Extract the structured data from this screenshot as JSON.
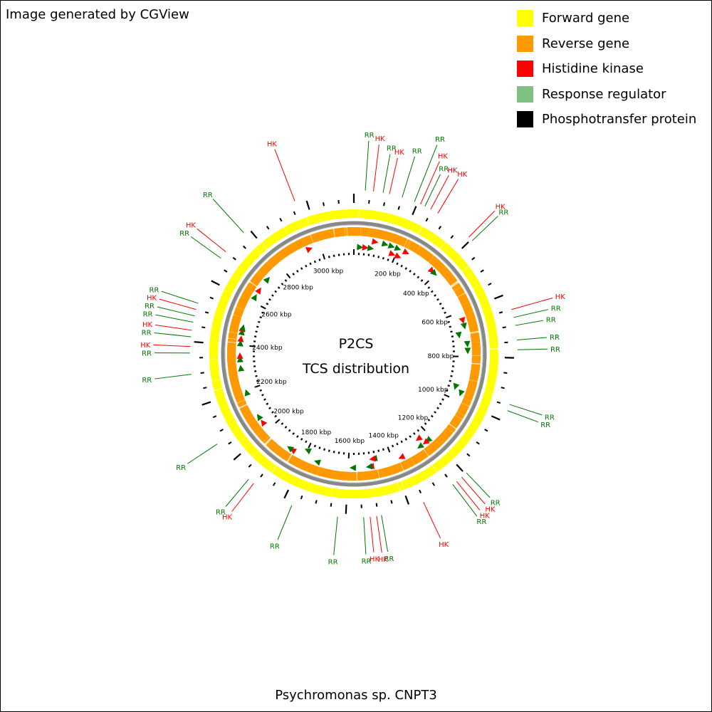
{
  "credit": "Image generated by CGView",
  "legend": [
    {
      "label": "Forward gene",
      "color": "#FFFF00"
    },
    {
      "label": "Reverse gene",
      "color": "#FF9900"
    },
    {
      "label": "Histidine kinase",
      "color": "#FF0000"
    },
    {
      "label": "Response regulator",
      "color": "#80C080"
    },
    {
      "label": "Phosphotransfer protein",
      "color": "#000000"
    }
  ],
  "center": {
    "line1": "P2CS",
    "line2": "TCS distribution"
  },
  "organism": "Psychromonas sp. CNPT3",
  "colors": {
    "forward": "#FFFF00",
    "reverse": "#FF9900",
    "hk": "#FF0000",
    "rr": "#007700",
    "backbone": "#888888",
    "ticks": "#000000"
  },
  "genome": {
    "size_kbp": 3150,
    "tick_labels": [
      {
        "kbp": 200,
        "label": "200 kbp"
      },
      {
        "kbp": 400,
        "label": "400 kbp"
      },
      {
        "kbp": 600,
        "label": "600 kbp"
      },
      {
        "kbp": 800,
        "label": "800 kbp"
      },
      {
        "kbp": 1000,
        "label": "1000 kbp"
      },
      {
        "kbp": 1200,
        "label": "1200 kbp"
      },
      {
        "kbp": 1400,
        "label": "1400 kbp"
      },
      {
        "kbp": 1600,
        "label": "1600 kbp"
      },
      {
        "kbp": 1800,
        "label": "1800 kbp"
      },
      {
        "kbp": 2000,
        "label": "2000 kbp"
      },
      {
        "kbp": 2200,
        "label": "2200 kbp"
      },
      {
        "kbp": 2400,
        "label": "2400 kbp"
      },
      {
        "kbp": 2600,
        "label": "2600 kbp"
      },
      {
        "kbp": 2800,
        "label": "2800 kbp"
      },
      {
        "kbp": 3000,
        "label": "3000 kbp"
      }
    ]
  },
  "features": [
    {
      "kbp": 2950,
      "type": "HK",
      "strand": "fwd"
    },
    {
      "kbp": 30,
      "type": "RR",
      "strand": "rev"
    },
    {
      "kbp": 55,
      "type": "HK",
      "strand": "rev"
    },
    {
      "kbp": 80,
      "type": "RR",
      "strand": "rev"
    },
    {
      "kbp": 95,
      "type": "HK",
      "strand": "fwd"
    },
    {
      "kbp": 140,
      "type": "RR",
      "strand": "fwd"
    },
    {
      "kbp": 170,
      "type": "RR",
      "strand": "fwd"
    },
    {
      "kbp": 185,
      "type": "HK",
      "strand": "rev"
    },
    {
      "kbp": 200,
      "type": "RR",
      "strand": "fwd"
    },
    {
      "kbp": 215,
      "type": "HK",
      "strand": "rev"
    },
    {
      "kbp": 240,
      "type": "HK",
      "strand": "fwd"
    },
    {
      "kbp": 380,
      "type": "HK",
      "strand": "fwd"
    },
    {
      "kbp": 395,
      "type": "RR",
      "strand": "fwd"
    },
    {
      "kbp": 640,
      "type": "HK",
      "strand": "fwd"
    },
    {
      "kbp": 665,
      "type": "RR",
      "strand": "fwd"
    },
    {
      "kbp": 700,
      "type": "RR",
      "strand": "rev"
    },
    {
      "kbp": 745,
      "type": "RR",
      "strand": "fwd"
    },
    {
      "kbp": 775,
      "type": "RR",
      "strand": "fwd"
    },
    {
      "kbp": 945,
      "type": "RR",
      "strand": "rev"
    },
    {
      "kbp": 965,
      "type": "RR",
      "strand": "fwd"
    },
    {
      "kbp": 1220,
      "type": "RR",
      "strand": "fwd"
    },
    {
      "kbp": 1235,
      "type": "HK",
      "strand": "fwd"
    },
    {
      "kbp": 1250,
      "type": "HK",
      "strand": "rev"
    },
    {
      "kbp": 1265,
      "type": "RR",
      "strand": "fwd"
    },
    {
      "kbp": 1360,
      "type": "HK",
      "strand": "fwd"
    },
    {
      "kbp": 1480,
      "type": "RR",
      "strand": "rev"
    },
    {
      "kbp": 1488,
      "type": "HK",
      "strand": "rev"
    },
    {
      "kbp": 1500,
      "type": "HK",
      "strand": "fwd"
    },
    {
      "kbp": 1508,
      "type": "RR",
      "strand": "fwd"
    },
    {
      "kbp": 1580,
      "type": "RR",
      "strand": "fwd"
    },
    {
      "kbp": 1740,
      "type": "RR",
      "strand": "fwd"
    },
    {
      "kbp": 1800,
      "type": "RR",
      "strand": "rev"
    },
    {
      "kbp": 1860,
      "type": "HK",
      "strand": "fwd"
    },
    {
      "kbp": 1875,
      "type": "RR",
      "strand": "fwd"
    },
    {
      "kbp": 2040,
      "type": "HK",
      "strand": "fwd"
    },
    {
      "kbp": 2070,
      "type": "RR",
      "strand": "fwd"
    },
    {
      "kbp": 2190,
      "type": "RR",
      "strand": "fwd"
    },
    {
      "kbp": 2300,
      "type": "RR",
      "strand": "fwd"
    },
    {
      "kbp": 2340,
      "type": "RR",
      "strand": "fwd"
    },
    {
      "kbp": 2355,
      "type": "HK",
      "strand": "fwd"
    },
    {
      "kbp": 2410,
      "type": "RR",
      "strand": "fwd"
    },
    {
      "kbp": 2430,
      "type": "HK",
      "strand": "fwd"
    },
    {
      "kbp": 2460,
      "type": "RR",
      "strand": "fwd"
    },
    {
      "kbp": 2475,
      "type": "HK",
      "strand": "fwd"
    },
    {
      "kbp": 2480,
      "type": "RR",
      "strand": "fwd"
    },
    {
      "kbp": 2625,
      "type": "RR",
      "strand": "fwd"
    },
    {
      "kbp": 2660,
      "type": "HK",
      "strand": "fwd"
    },
    {
      "kbp": 2720,
      "type": "RR",
      "strand": "fwd"
    }
  ],
  "callouts": [
    {
      "label": "HK",
      "type": "HK",
      "kbp": 2965,
      "len": 78
    },
    {
      "label": "RR",
      "type": "RR",
      "kbp": 35,
      "len": 70
    },
    {
      "label": "HK",
      "type": "HK",
      "kbp": 60,
      "len": 66
    },
    {
      "label": "RR",
      "type": "RR",
      "kbp": 90,
      "len": 55
    },
    {
      "label": "HK",
      "type": "HK",
      "kbp": 110,
      "len": 52
    },
    {
      "label": "RR",
      "type": "RR",
      "kbp": 150,
      "len": 60
    },
    {
      "label": "RR",
      "type": "RR",
      "kbp": 190,
      "len": 86
    },
    {
      "label": "HK",
      "type": "HK",
      "kbp": 210,
      "len": 66
    },
    {
      "label": "RR",
      "type": "RR",
      "kbp": 225,
      "len": 50
    },
    {
      "label": "HK",
      "type": "HK",
      "kbp": 245,
      "len": 54
    },
    {
      "label": "HK",
      "type": "HK",
      "kbp": 270,
      "len": 56
    },
    {
      "label": "HK",
      "type": "HK",
      "kbp": 390,
      "len": 52
    },
    {
      "label": "RR",
      "type": "RR",
      "kbp": 405,
      "len": 50
    },
    {
      "label": "HK",
      "type": "HK",
      "kbp": 650,
      "len": 60
    },
    {
      "label": "RR",
      "type": "RR",
      "kbp": 675,
      "len": 50
    },
    {
      "label": "RR",
      "type": "RR",
      "kbp": 700,
      "len": 40
    },
    {
      "label": "RR",
      "type": "RR",
      "kbp": 745,
      "len": 42
    },
    {
      "label": "RR",
      "type": "RR",
      "kbp": 775,
      "len": 42
    },
    {
      "label": "RR",
      "type": "RR",
      "kbp": 945,
      "len": 48
    },
    {
      "label": "RR",
      "type": "RR",
      "kbp": 965,
      "len": 46
    },
    {
      "label": "RR",
      "type": "RR",
      "kbp": 1195,
      "len": 48
    },
    {
      "label": "HK",
      "type": "HK",
      "kbp": 1215,
      "len": 50
    },
    {
      "label": "HK",
      "type": "HK",
      "kbp": 1235,
      "len": 52
    },
    {
      "label": "RR",
      "type": "RR",
      "kbp": 1250,
      "len": 56
    },
    {
      "label": "HK",
      "type": "HK",
      "kbp": 1355,
      "len": 56
    },
    {
      "label": "RR",
      "type": "RR",
      "kbp": 1490,
      "len": 52
    },
    {
      "label": "HK",
      "type": "HK",
      "kbp": 1505,
      "len": 52
    },
    {
      "label": "HK",
      "type": "HK",
      "kbp": 1525,
      "len": 50
    },
    {
      "label": "RR",
      "type": "RR",
      "kbp": 1545,
      "len": 52
    },
    {
      "label": "RR",
      "type": "RR",
      "kbp": 1625,
      "len": 54
    },
    {
      "label": "RR",
      "type": "RR",
      "kbp": 1770,
      "len": 52
    },
    {
      "label": "HK",
      "type": "HK",
      "kbp": 1905,
      "len": 50
    },
    {
      "label": "RR",
      "type": "RR",
      "kbp": 1925,
      "len": 50
    },
    {
      "label": "RR",
      "type": "RR",
      "kbp": 2070,
      "len": 50
    },
    {
      "label": "RR",
      "type": "RR",
      "kbp": 2300,
      "len": 52
    },
    {
      "label": "RR",
      "type": "RR",
      "kbp": 2365,
      "len": 50
    },
    {
      "label": "HK",
      "type": "HK",
      "kbp": 2385,
      "len": 52
    },
    {
      "label": "RR",
      "type": "RR",
      "kbp": 2415,
      "len": 52
    },
    {
      "label": "HK",
      "type": "HK",
      "kbp": 2435,
      "len": 52
    },
    {
      "label": "RR",
      "type": "RR",
      "kbp": 2460,
      "len": 54
    },
    {
      "label": "RR",
      "type": "RR",
      "kbp": 2480,
      "len": 54
    },
    {
      "label": "HK",
      "type": "HK",
      "kbp": 2500,
      "len": 54
    },
    {
      "label": "RR",
      "type": "RR",
      "kbp": 2520,
      "len": 54
    },
    {
      "label": "RR",
      "type": "RR",
      "kbp": 2675,
      "len": 52
    },
    {
      "label": "HK",
      "type": "HK",
      "kbp": 2700,
      "len": 52
    },
    {
      "label": "RR",
      "type": "RR",
      "kbp": 2780,
      "len": 64
    }
  ]
}
